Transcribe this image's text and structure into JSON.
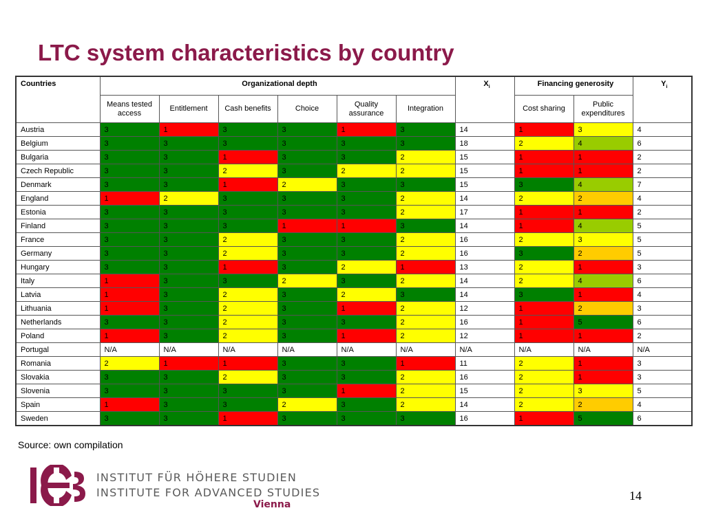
{
  "title": "LTC system characteristics by country",
  "table": {
    "header_top": {
      "countries": "Countries",
      "organizational_depth": "Organizational depth",
      "xi": "X",
      "xi_sub": "i",
      "financing_generosity": "Financing generosity",
      "yi": "Y",
      "yi_sub": "i"
    },
    "header_sub": {
      "means_tested": "Means tested access",
      "entitlement": "Entitlement",
      "cash_benefits": "Cash benefits",
      "choice": "Choice",
      "quality_assurance": "Quality assurance",
      "integration": "Integration",
      "cost_sharing": "Cost sharing",
      "public_expenditures": "Public expenditures"
    },
    "rows": [
      {
        "country": "Austria",
        "cells": [
          "3",
          "1",
          "3",
          "3",
          "1",
          "3"
        ],
        "x": "14",
        "fin": [
          "1",
          "3"
        ],
        "y": "4"
      },
      {
        "country": "Belgium",
        "cells": [
          "3",
          "3",
          "3",
          "3",
          "3",
          "3"
        ],
        "x": "18",
        "fin": [
          "2",
          "4"
        ],
        "y": "6"
      },
      {
        "country": "Bulgaria",
        "cells": [
          "3",
          "3",
          "1",
          "3",
          "3",
          "2"
        ],
        "x": "15",
        "fin": [
          "1",
          "1"
        ],
        "y": "2"
      },
      {
        "country": "Czech Republic",
        "cells": [
          "3",
          "3",
          "2",
          "3",
          "2",
          "2"
        ],
        "x": "15",
        "fin": [
          "1",
          "1"
        ],
        "y": "2"
      },
      {
        "country": "Denmark",
        "cells": [
          "3",
          "3",
          "1",
          "2",
          "3",
          "3"
        ],
        "x": "15",
        "fin": [
          "3",
          "4"
        ],
        "y": "7"
      },
      {
        "country": "England",
        "cells": [
          "1",
          "2",
          "3",
          "3",
          "3",
          "2"
        ],
        "x": "14",
        "fin": [
          "2",
          "2"
        ],
        "y": "4"
      },
      {
        "country": "Estonia",
        "cells": [
          "3",
          "3",
          "3",
          "3",
          "3",
          "2"
        ],
        "x": "17",
        "fin": [
          "1",
          "1"
        ],
        "y": "2"
      },
      {
        "country": "Finland",
        "cells": [
          "3",
          "3",
          "3",
          "1",
          "1",
          "3"
        ],
        "x": "14",
        "fin": [
          "1",
          "4"
        ],
        "y": "5"
      },
      {
        "country": "France",
        "cells": [
          "3",
          "3",
          "2",
          "3",
          "3",
          "2"
        ],
        "x": "16",
        "fin": [
          "2",
          "3"
        ],
        "y": "5"
      },
      {
        "country": "Germany",
        "cells": [
          "3",
          "3",
          "2",
          "3",
          "3",
          "2"
        ],
        "x": "16",
        "fin": [
          "3",
          "2"
        ],
        "y": "5"
      },
      {
        "country": "Hungary",
        "cells": [
          "3",
          "3",
          "1",
          "3",
          "2",
          "1"
        ],
        "x": "13",
        "fin": [
          "2",
          "1"
        ],
        "y": "3"
      },
      {
        "country": "Italy",
        "cells": [
          "1",
          "3",
          "3",
          "2",
          "3",
          "2"
        ],
        "x": "14",
        "fin": [
          "2",
          "4"
        ],
        "y": "6"
      },
      {
        "country": "Latvia",
        "cells": [
          "1",
          "3",
          "2",
          "3",
          "2",
          "3"
        ],
        "x": "14",
        "fin": [
          "3",
          "1"
        ],
        "y": "4"
      },
      {
        "country": "Lithuania",
        "cells": [
          "1",
          "3",
          "2",
          "3",
          "1",
          "2"
        ],
        "x": "12",
        "fin": [
          "1",
          "2"
        ],
        "y": "3"
      },
      {
        "country": "Netherlands",
        "cells": [
          "3",
          "3",
          "2",
          "3",
          "3",
          "2"
        ],
        "x": "16",
        "fin": [
          "1",
          "5"
        ],
        "y": "6"
      },
      {
        "country": "Poland",
        "cells": [
          "1",
          "3",
          "2",
          "3",
          "1",
          "2"
        ],
        "x": "12",
        "fin": [
          "1",
          "1"
        ],
        "y": "2"
      },
      {
        "country": "Portugal",
        "cells": [
          "N/A",
          "N/A",
          "N/A",
          "N/A",
          "N/A",
          "N/A"
        ],
        "x": "N/A",
        "fin": [
          "N/A",
          "N/A"
        ],
        "y": "N/A"
      },
      {
        "country": "Romania",
        "cells": [
          "2",
          "1",
          "1",
          "3",
          "3",
          "1"
        ],
        "x": "11",
        "fin": [
          "2",
          "1"
        ],
        "y": "3"
      },
      {
        "country": "Slovakia",
        "cells": [
          "3",
          "3",
          "2",
          "3",
          "3",
          "2"
        ],
        "x": "16",
        "fin": [
          "2",
          "1"
        ],
        "y": "3"
      },
      {
        "country": "Slovenia",
        "cells": [
          "3",
          "3",
          "3",
          "3",
          "1",
          "2"
        ],
        "x": "15",
        "fin": [
          "2",
          "3"
        ],
        "y": "5"
      },
      {
        "country": "Spain",
        "cells": [
          "1",
          "3",
          "3",
          "2",
          "3",
          "2"
        ],
        "x": "14",
        "fin": [
          "2",
          "2"
        ],
        "y": "4"
      },
      {
        "country": "Sweden",
        "cells": [
          "3",
          "3",
          "1",
          "3",
          "3",
          "3"
        ],
        "x": "16",
        "fin": [
          "1",
          "5"
        ],
        "y": "6"
      }
    ]
  },
  "colors": {
    "org": {
      "1": "#ff0000",
      "2": "#ffff00",
      "3": "#008000"
    },
    "cost_sharing": {
      "1": "#ff0000",
      "2": "#ffff00",
      "3": "#008000"
    },
    "public_exp": {
      "1": "#ff0000",
      "2": "#ffcc00",
      "3": "#ffff00",
      "4": "#99cc00",
      "5": "#008000"
    },
    "title": "#8b1a4a"
  },
  "source": "Source: own compilation",
  "institute": {
    "line1": "INSTITUT FÜR HÖHERE STUDIEN",
    "line2": "INSTITUTE FOR ADVANCED STUDIES",
    "city": "Vienna",
    "logo_text": "IHS"
  },
  "page_number": "14"
}
